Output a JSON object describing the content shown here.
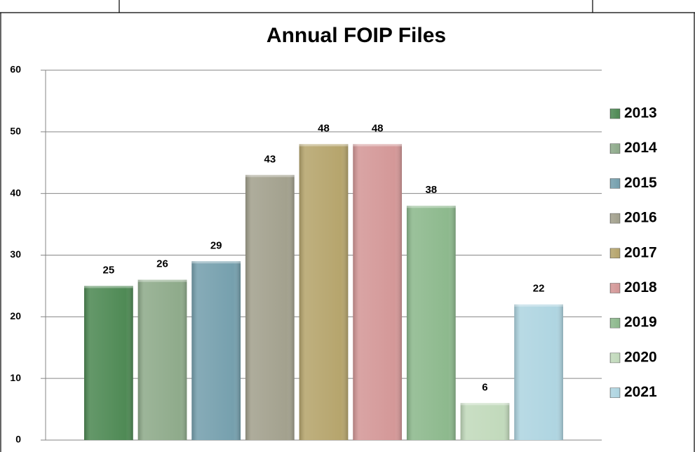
{
  "chart_data": {
    "type": "bar",
    "title": "Annual FOIP Files",
    "categories": [
      null
    ],
    "series": [
      {
        "name": "2013",
        "color": "#4f8a55",
        "values": [
          25
        ]
      },
      {
        "name": "2014",
        "color": "#8fab8b",
        "values": [
          26
        ]
      },
      {
        "name": "2015",
        "color": "#76a0ae",
        "values": [
          29
        ]
      },
      {
        "name": "2016",
        "color": "#a3a18e",
        "values": [
          43
        ]
      },
      {
        "name": "2017",
        "color": "#b6a56d",
        "values": [
          48
        ]
      },
      {
        "name": "2018",
        "color": "#d49898",
        "values": [
          48
        ]
      },
      {
        "name": "2019",
        "color": "#8db98d",
        "values": [
          38
        ]
      },
      {
        "name": "2020",
        "color": "#c2dabc",
        "values": [
          6
        ]
      },
      {
        "name": "2021",
        "color": "#afd5e1",
        "values": [
          22
        ]
      }
    ],
    "ylim": [
      0,
      60
    ],
    "yticks": [
      0,
      10,
      20,
      30,
      40,
      50,
      60
    ],
    "grid": true,
    "legend": "right"
  }
}
